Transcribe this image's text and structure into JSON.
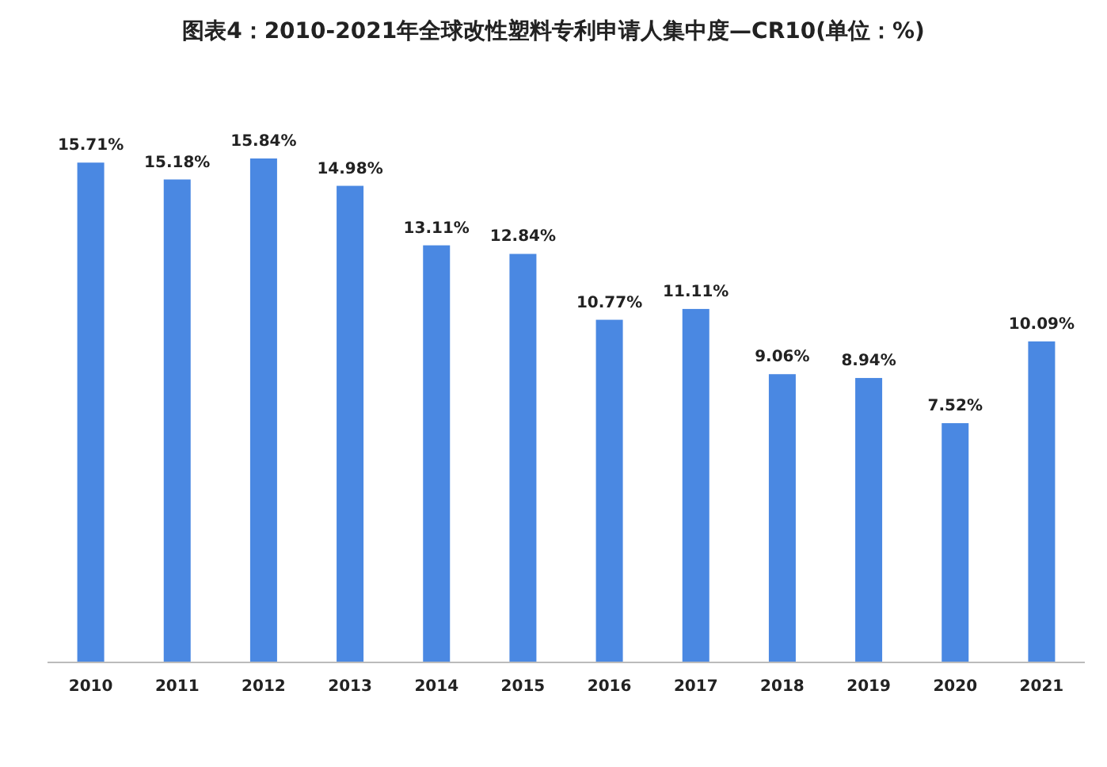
{
  "chart_data": {
    "type": "bar",
    "title": "图表4：2010-2021年全球改性塑料专利申请人集中度—CR10(单位：%)",
    "categories": [
      "2010",
      "2011",
      "2012",
      "2013",
      "2014",
      "2015",
      "2016",
      "2017",
      "2018",
      "2019",
      "2020",
      "2021"
    ],
    "values": [
      15.71,
      15.18,
      15.84,
      14.98,
      13.11,
      12.84,
      10.77,
      11.11,
      9.06,
      8.94,
      7.52,
      10.09
    ],
    "value_labels": [
      "15.71%",
      "15.18%",
      "15.84%",
      "14.98%",
      "13.11%",
      "12.84%",
      "10.77%",
      "11.11%",
      "9.06%",
      "8.94%",
      "7.52%",
      "10.09%"
    ],
    "color": "#4a88e2"
  }
}
